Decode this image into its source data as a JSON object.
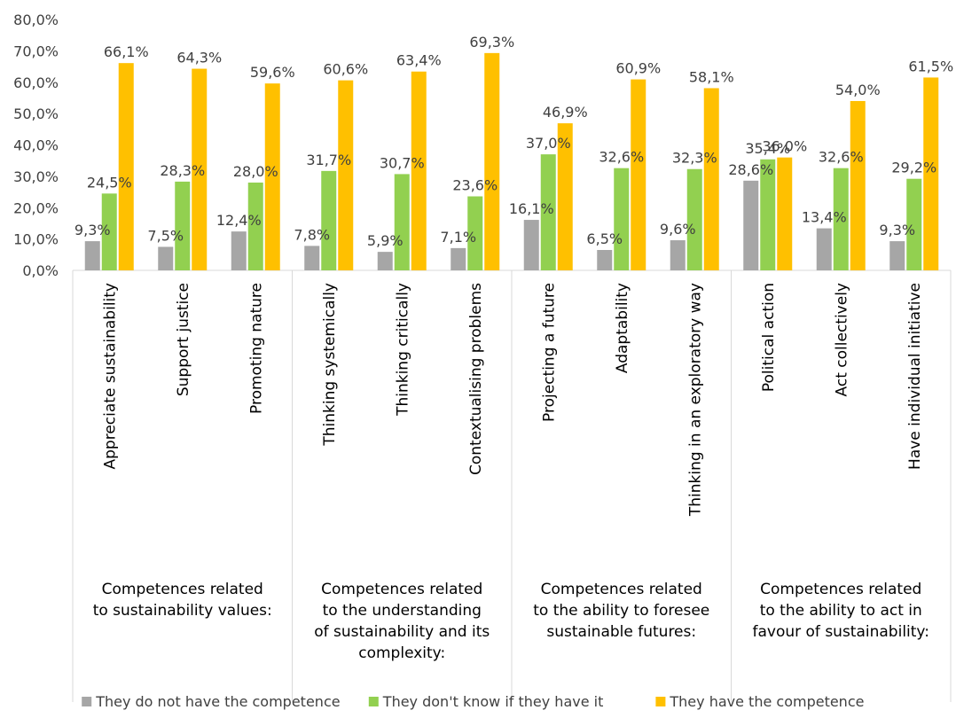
{
  "chart_data": {
    "type": "bar",
    "categories": [
      "Appreciate sustainability",
      "Support justice",
      "Promoting nature",
      "Thinking systemically",
      "Thinking critically",
      "Contextualising problems",
      "Projecting a future",
      "Adaptability",
      "Thinking in an exploratory way",
      "Political action",
      "Act collectively",
      "Have individual initiative"
    ],
    "groups": [
      {
        "lines": [
          "Competences related",
          "to sustainability values:"
        ],
        "span": 3
      },
      {
        "lines": [
          "Competences related",
          "to the understanding",
          "of sustainability and its",
          "complexity:"
        ],
        "span": 3
      },
      {
        "lines": [
          "Competences related",
          "to the ability to foresee",
          "sustainable futures:"
        ],
        "span": 3
      },
      {
        "lines": [
          "Competences related",
          "to the ability to act in",
          "favour of sustainability:"
        ],
        "span": 3
      }
    ],
    "series": [
      {
        "name": "They do not have the competence",
        "color": "#a6a6a6",
        "values": [
          9.3,
          7.5,
          12.4,
          7.8,
          5.9,
          7.1,
          16.1,
          6.5,
          9.6,
          28.6,
          13.4,
          9.3
        ],
        "labels": [
          "9,3%",
          "7,5%",
          "12,4%",
          "7,8%",
          "5,9%",
          "7,1%",
          "16,1%",
          "6,5%",
          "9,6%",
          "28,6%",
          "13,4%",
          "9,3%"
        ]
      },
      {
        "name": "They don't know if they have it",
        "color": "#92d050",
        "values": [
          24.5,
          28.3,
          28.0,
          31.7,
          30.7,
          23.6,
          37.0,
          32.6,
          32.3,
          35.4,
          32.6,
          29.2
        ],
        "labels": [
          "24,5%",
          "28,3%",
          "28,0%",
          "31,7%",
          "30,7%",
          "23,6%",
          "37,0%",
          "32,6%",
          "32,3%",
          "35,4%",
          "32,6%",
          "29,2%"
        ]
      },
      {
        "name": "They have the competence",
        "color": "#ffc000",
        "values": [
          66.1,
          64.3,
          59.6,
          60.6,
          63.4,
          69.3,
          46.9,
          60.9,
          58.1,
          36.0,
          54.0,
          61.5
        ],
        "labels": [
          "66,1%",
          "64,3%",
          "59,6%",
          "60,6%",
          "63,4%",
          "69,3%",
          "46,9%",
          "60,9%",
          "58,1%",
          "36,0%",
          "54,0%",
          "61,5%"
        ]
      }
    ],
    "yticks": [
      "0,0%",
      "10,0%",
      "20,0%",
      "30,0%",
      "40,0%",
      "50,0%",
      "60,0%",
      "70,0%",
      "80,0%"
    ],
    "ylim": [
      0,
      80
    ],
    "grid": false,
    "legend": "bottom"
  }
}
